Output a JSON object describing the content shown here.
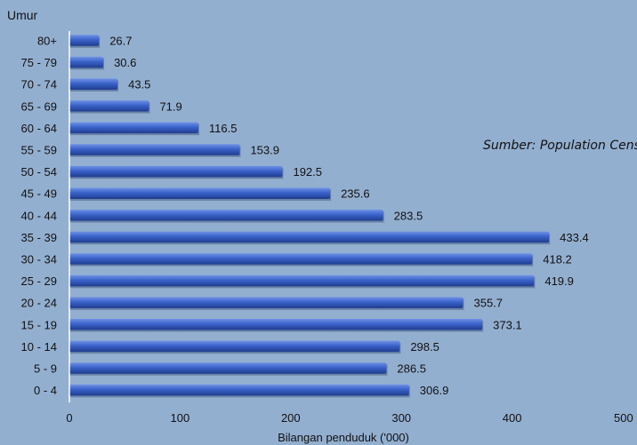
{
  "chart_data": {
    "type": "bar",
    "orientation": "horizontal",
    "y_axis_title": "Umur",
    "x_axis_title": "Bilangan penduduk ('000)",
    "categories": [
      "80+",
      "75 - 79",
      "70 - 74",
      "65 - 69",
      "60 - 64",
      "55 - 59",
      "50 - 54",
      "45 - 49",
      "40 - 44",
      "35 - 39",
      "30 - 34",
      "25 - 29",
      "20 - 24",
      "15 - 19",
      "10 - 14",
      "5 - 9",
      "0 - 4"
    ],
    "values": [
      26.7,
      30.6,
      43.5,
      71.9,
      116.5,
      153.9,
      192.5,
      235.6,
      283.5,
      433.4,
      418.2,
      419.9,
      355.7,
      373.1,
      298.5,
      286.5,
      306.9
    ],
    "value_labels": [
      "26.7",
      "30.6",
      "43.5",
      "71.9",
      "116.5",
      "153.9",
      "192.5",
      "235.6",
      "283.5",
      "433.4",
      "418.2",
      "419.9",
      "355.7",
      "373.1",
      "298.5",
      "286.5",
      "306.9"
    ],
    "xlim": [
      0,
      500
    ],
    "x_ticks": [
      0,
      100,
      200,
      300,
      400,
      500
    ],
    "x_tick_labels": [
      "0",
      "100",
      "200",
      "300",
      "400",
      "500"
    ],
    "grid": false,
    "colors": {
      "bar": "#3a62c9",
      "background": "#93afd0",
      "axis": "#ffffff"
    }
  },
  "annotation": "Sumber: Population Census"
}
